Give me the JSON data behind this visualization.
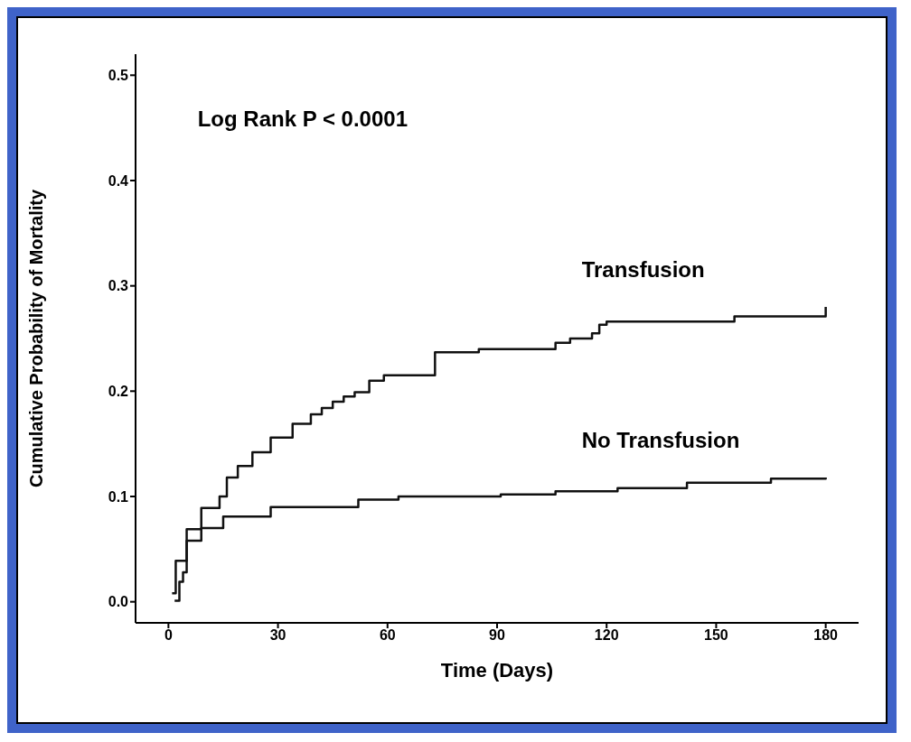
{
  "chart_data": {
    "type": "step",
    "xlabel": "Time (Days)",
    "ylabel": "Cumulative Probability of Mortality",
    "annotations": [
      "Log Rank P < 0.0001"
    ],
    "marker": "none",
    "xlim": [
      -9,
      189
    ],
    "xticks": [
      0,
      30,
      60,
      90,
      120,
      150,
      180
    ],
    "ylim": [
      -0.02,
      0.52
    ],
    "yticks": [
      {
        "value": 0,
        "label": "0.0"
      },
      {
        "value": 0.1,
        "label": "0.1"
      },
      {
        "value": 0.2,
        "label": "0.2"
      },
      {
        "value": 0.3,
        "label": "0.3"
      },
      {
        "value": 0.4,
        "label": "0.4"
      },
      {
        "value": 0.5,
        "label": "0.5"
      }
    ],
    "series": [
      {
        "name": "Transfusion",
        "color": "#111111",
        "x": [
          1.7,
          3,
          4,
          5,
          9,
          14,
          16,
          19,
          23,
          28,
          34,
          39,
          42,
          45,
          48,
          51,
          55,
          59,
          73,
          85,
          106,
          110,
          116,
          118,
          120,
          155,
          180,
          180
        ],
        "values": [
          0.001,
          0.019,
          0.028,
          0.069,
          0.089,
          0.1,
          0.118,
          0.129,
          0.142,
          0.156,
          0.169,
          0.178,
          0.184,
          0.19,
          0.195,
          0.199,
          0.21,
          0.215,
          0.237,
          0.24,
          0.246,
          0.25,
          0.255,
          0.263,
          0.266,
          0.271,
          0.271,
          0.28
        ]
      },
      {
        "name": "No Transfusion",
        "color": "#111111",
        "x": [
          1,
          2,
          5,
          9,
          15,
          28,
          52,
          63,
          91,
          106,
          123,
          142,
          165,
          180
        ],
        "values": [
          0.008,
          0.039,
          0.058,
          0.07,
          0.081,
          0.09,
          0.097,
          0.1,
          0.102,
          0.105,
          0.108,
          0.113,
          0.117,
          0.118
        ]
      }
    ]
  }
}
